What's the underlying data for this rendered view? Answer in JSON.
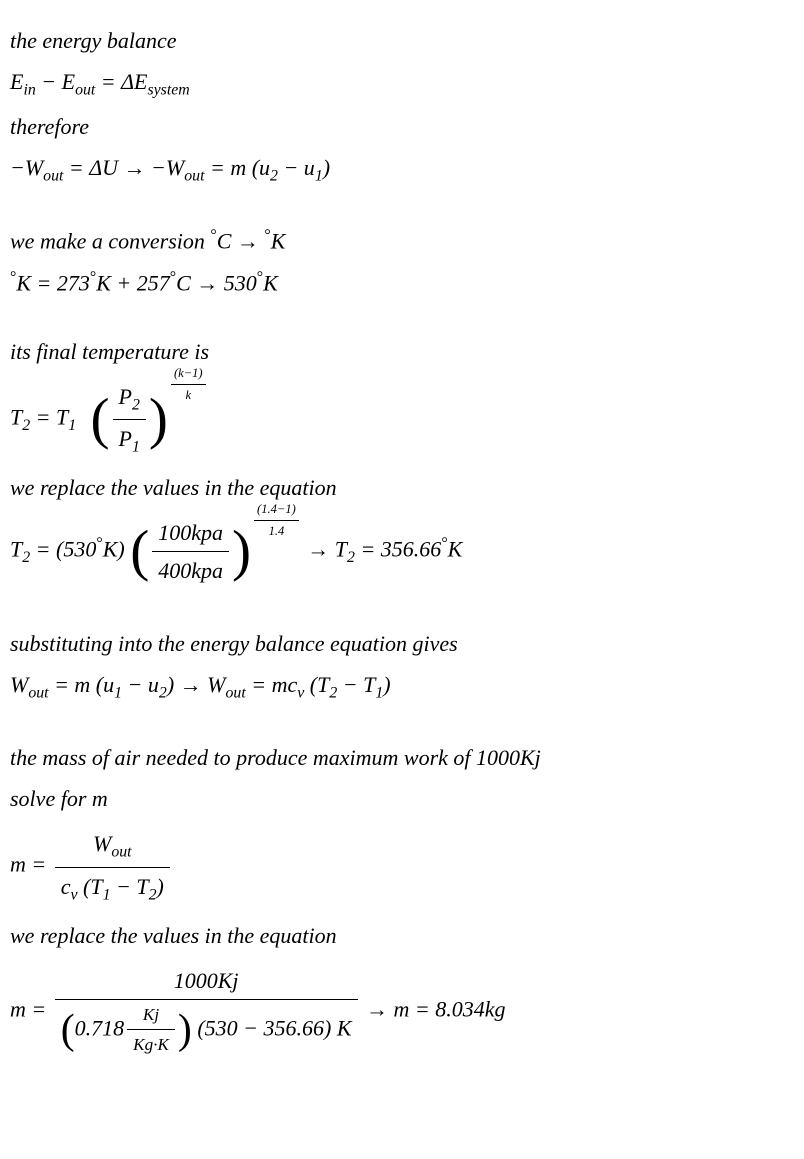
{
  "lines": {
    "l1": "the energy balance",
    "l2_a": "E",
    "l2_b": "in",
    "l2_c": " − E",
    "l2_d": "out",
    "l2_e": " = ΔE",
    "l2_f": "system",
    "l3": "therefore",
    "l4_a": "−W",
    "l4_b": "out",
    "l4_c": " = ΔU → −W",
    "l4_d": "out",
    "l4_e": " = m (u",
    "l4_f": "2",
    "l4_g": " − u",
    "l4_h": "1",
    "l4_i": ")",
    "l5_a": "we make a conversion ",
    "l5_b": "°",
    "l5_c": "C → ",
    "l5_d": "°",
    "l5_e": "K",
    "l6_a": "°",
    "l6_b": "K = 273",
    "l6_c": "°",
    "l6_d": "K + 257",
    "l6_e": "°",
    "l6_f": "C → 530",
    "l6_g": "°",
    "l6_h": "K",
    "l7": "its final temperature is",
    "l8_a": "T",
    "l8_b": "2",
    "l8_c": " = T",
    "l8_d": "1",
    "l8_frac_num_a": "P",
    "l8_frac_num_b": "2",
    "l8_frac_den_a": "P",
    "l8_frac_den_b": "1",
    "l8_exp_num": "(k−1)",
    "l8_exp_den": "k",
    "l9": "we replace the values in the equation",
    "l10_a": "T",
    "l10_b": "2",
    "l10_c": " =  (530",
    "l10_d": "°",
    "l10_e": "K) ",
    "l10_frac_num": "100kpa",
    "l10_frac_den": "400kpa",
    "l10_exp_num": "(1.4−1)",
    "l10_exp_den": "1.4",
    "l10_f": " → T",
    "l10_g": "2",
    "l10_h": " = 356.66",
    "l10_i": "°",
    "l10_j": "K",
    "l11": "substituting into the energy balance equation gives",
    "l12_a": "W",
    "l12_b": "out",
    "l12_c": " = m (u",
    "l12_d": "1",
    "l12_e": " − u",
    "l12_f": "2",
    "l12_g": ") → W",
    "l12_h": "out",
    "l12_i": " = mc",
    "l12_j": "v",
    "l12_k": " (T",
    "l12_l": "2",
    "l12_m": " − T",
    "l12_n": "1",
    "l12_o": ")",
    "l13": "the mass of air needed to produce maximum work of 1000Kj",
    "l14": "solve for m",
    "l15_a": "m = ",
    "l15_num_a": "W",
    "l15_num_b": "out",
    "l15_den_a": "c",
    "l15_den_b": "v",
    "l15_den_c": " (T",
    "l15_den_d": "1",
    "l15_den_e": " − T",
    "l15_den_f": "2",
    "l15_den_g": ")",
    "l16": "we replace the values in the equation",
    "l17_a": "m = ",
    "l17_num": "1000Kj",
    "l17_den_a": "0.718",
    "l17_den_frac_num": "Kj",
    "l17_den_frac_den": "Kg·K",
    "l17_den_b": " (530 − 356.66) K",
    "l17_c": " → m = 8.034kg"
  },
  "style": {
    "font_size": 22,
    "color": "#000000",
    "background": "#ffffff"
  }
}
